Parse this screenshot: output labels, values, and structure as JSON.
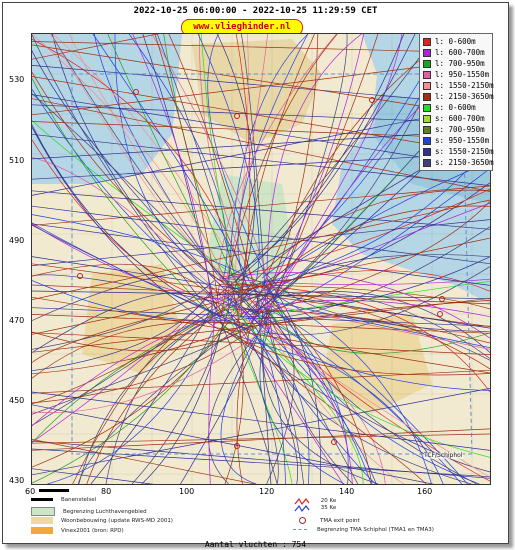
{
  "header": {
    "time_range": "2022-10-25 06:00:00 - 2022-10-25 11:29:59 CET"
  },
  "badge": {
    "text": "www.vlieghinder.nl"
  },
  "axes": {
    "y_ticks": [
      "530",
      "510",
      "490",
      "470",
      "450",
      "430"
    ],
    "x_ticks": [
      "80",
      "100",
      "120",
      "140",
      "160"
    ],
    "x_scale_start": "60"
  },
  "legend": {
    "items": [
      {
        "label": "l: 0-600m",
        "color": "#e02020"
      },
      {
        "label": "l: 600-700m",
        "color": "#b020e0"
      },
      {
        "label": "l: 700-950m",
        "color": "#20a020"
      },
      {
        "label": "l: 950-1550m",
        "color": "#e060a0"
      },
      {
        "label": "l: 1550-2150m",
        "color": "#f09090"
      },
      {
        "label": "l: 2150-3650m",
        "color": "#a03010"
      },
      {
        "label": "s: 0-600m",
        "color": "#20e020"
      },
      {
        "label": "s: 600-700m",
        "color": "#a0e020"
      },
      {
        "label": "s: 700-950m",
        "color": "#608020"
      },
      {
        "label": "s: 950-1550m",
        "color": "#2040e0"
      },
      {
        "label": "s: 1550-2150m",
        "color": "#303090"
      },
      {
        "label": "s: 2150-3650m",
        "color": "#404080"
      }
    ]
  },
  "map_labels": {
    "bottom_right": "TCF/Schiphol"
  },
  "bottom_legend": {
    "runway": "Banenstelsel",
    "airport_boundary": "Begrenzing Luchthavengebied",
    "housing": "Woonbebouwing (update RWS-MD 2001)",
    "vinex": "Vinex2001 (bron: RPD)",
    "ke20": "20 Ke",
    "ke35": "35 Ke",
    "tma_exit": "TMA exit point",
    "tma_boundary": "Begrenzing TMA Schiphol  (TMA1 en TMA3)"
  },
  "footer": {
    "count": "Aantal vluchten : 754"
  }
}
